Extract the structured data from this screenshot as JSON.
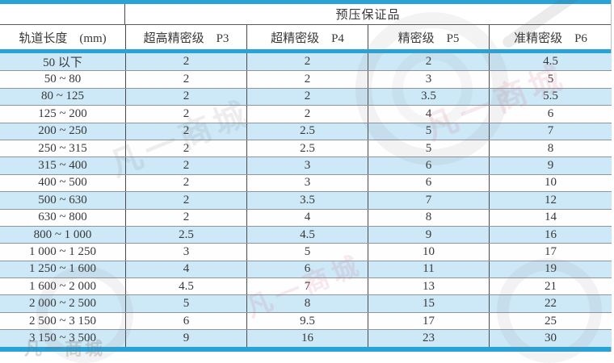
{
  "colors": {
    "accent_blue": "#29A3D7",
    "row_blue": "#CDE8F6",
    "grid_gray": "#8D969C",
    "divider_dark": "#4A4A4A",
    "text_color": "#383838"
  },
  "table": {
    "title": "预压保证品",
    "col0_header": "轨道长度　(mm)",
    "column_headers": [
      "超高精密级　P3",
      "超精密级　P4",
      "精密级　P5",
      "准精密级　P6"
    ],
    "rows": [
      {
        "range": "50 以下",
        "values": [
          "2",
          "2",
          "2",
          "4.5"
        ]
      },
      {
        "range": "50 ~ 80",
        "values": [
          "2",
          "2",
          "3",
          "5"
        ]
      },
      {
        "range": "80 ~ 125",
        "values": [
          "2",
          "2",
          "3.5",
          "5.5"
        ]
      },
      {
        "range": "125 ~ 200",
        "values": [
          "2",
          "2",
          "4",
          "6"
        ]
      },
      {
        "range": "200 ~ 250",
        "values": [
          "2",
          "2.5",
          "5",
          "7"
        ]
      },
      {
        "range": "250 ~ 315",
        "values": [
          "2",
          "2.5",
          "5",
          "8"
        ]
      },
      {
        "range": "315 ~ 400",
        "values": [
          "2",
          "3",
          "6",
          "9"
        ]
      },
      {
        "range": "400 ~ 500",
        "values": [
          "2",
          "3",
          "6",
          "10"
        ]
      },
      {
        "range": "500 ~ 630",
        "values": [
          "2",
          "3.5",
          "7",
          "12"
        ]
      },
      {
        "range": "630 ~ 800",
        "values": [
          "2",
          "4",
          "8",
          "14"
        ]
      },
      {
        "range": "800 ~ 1 000",
        "values": [
          "2.5",
          "4.5",
          "9",
          "16"
        ]
      },
      {
        "range": "1 000 ~ 1 250",
        "values": [
          "3",
          "5",
          "10",
          "17"
        ]
      },
      {
        "range": "1 250 ~ 1 600",
        "values": [
          "4",
          "6",
          "11",
          "19"
        ]
      },
      {
        "range": "1 600 ~ 2 000",
        "values": [
          "4.5",
          "7",
          "13",
          "21"
        ]
      },
      {
        "range": "2 000 ~ 2 500",
        "values": [
          "5",
          "8",
          "15",
          "22"
        ]
      },
      {
        "range": "2 500 ~ 3 150",
        "values": [
          "6",
          "9.5",
          "17",
          "25"
        ]
      },
      {
        "range": "3 150 ~ 3 500",
        "values": [
          "9",
          "16",
          "23",
          "30"
        ]
      }
    ]
  },
  "watermark": {
    "text": "凡一商城"
  }
}
